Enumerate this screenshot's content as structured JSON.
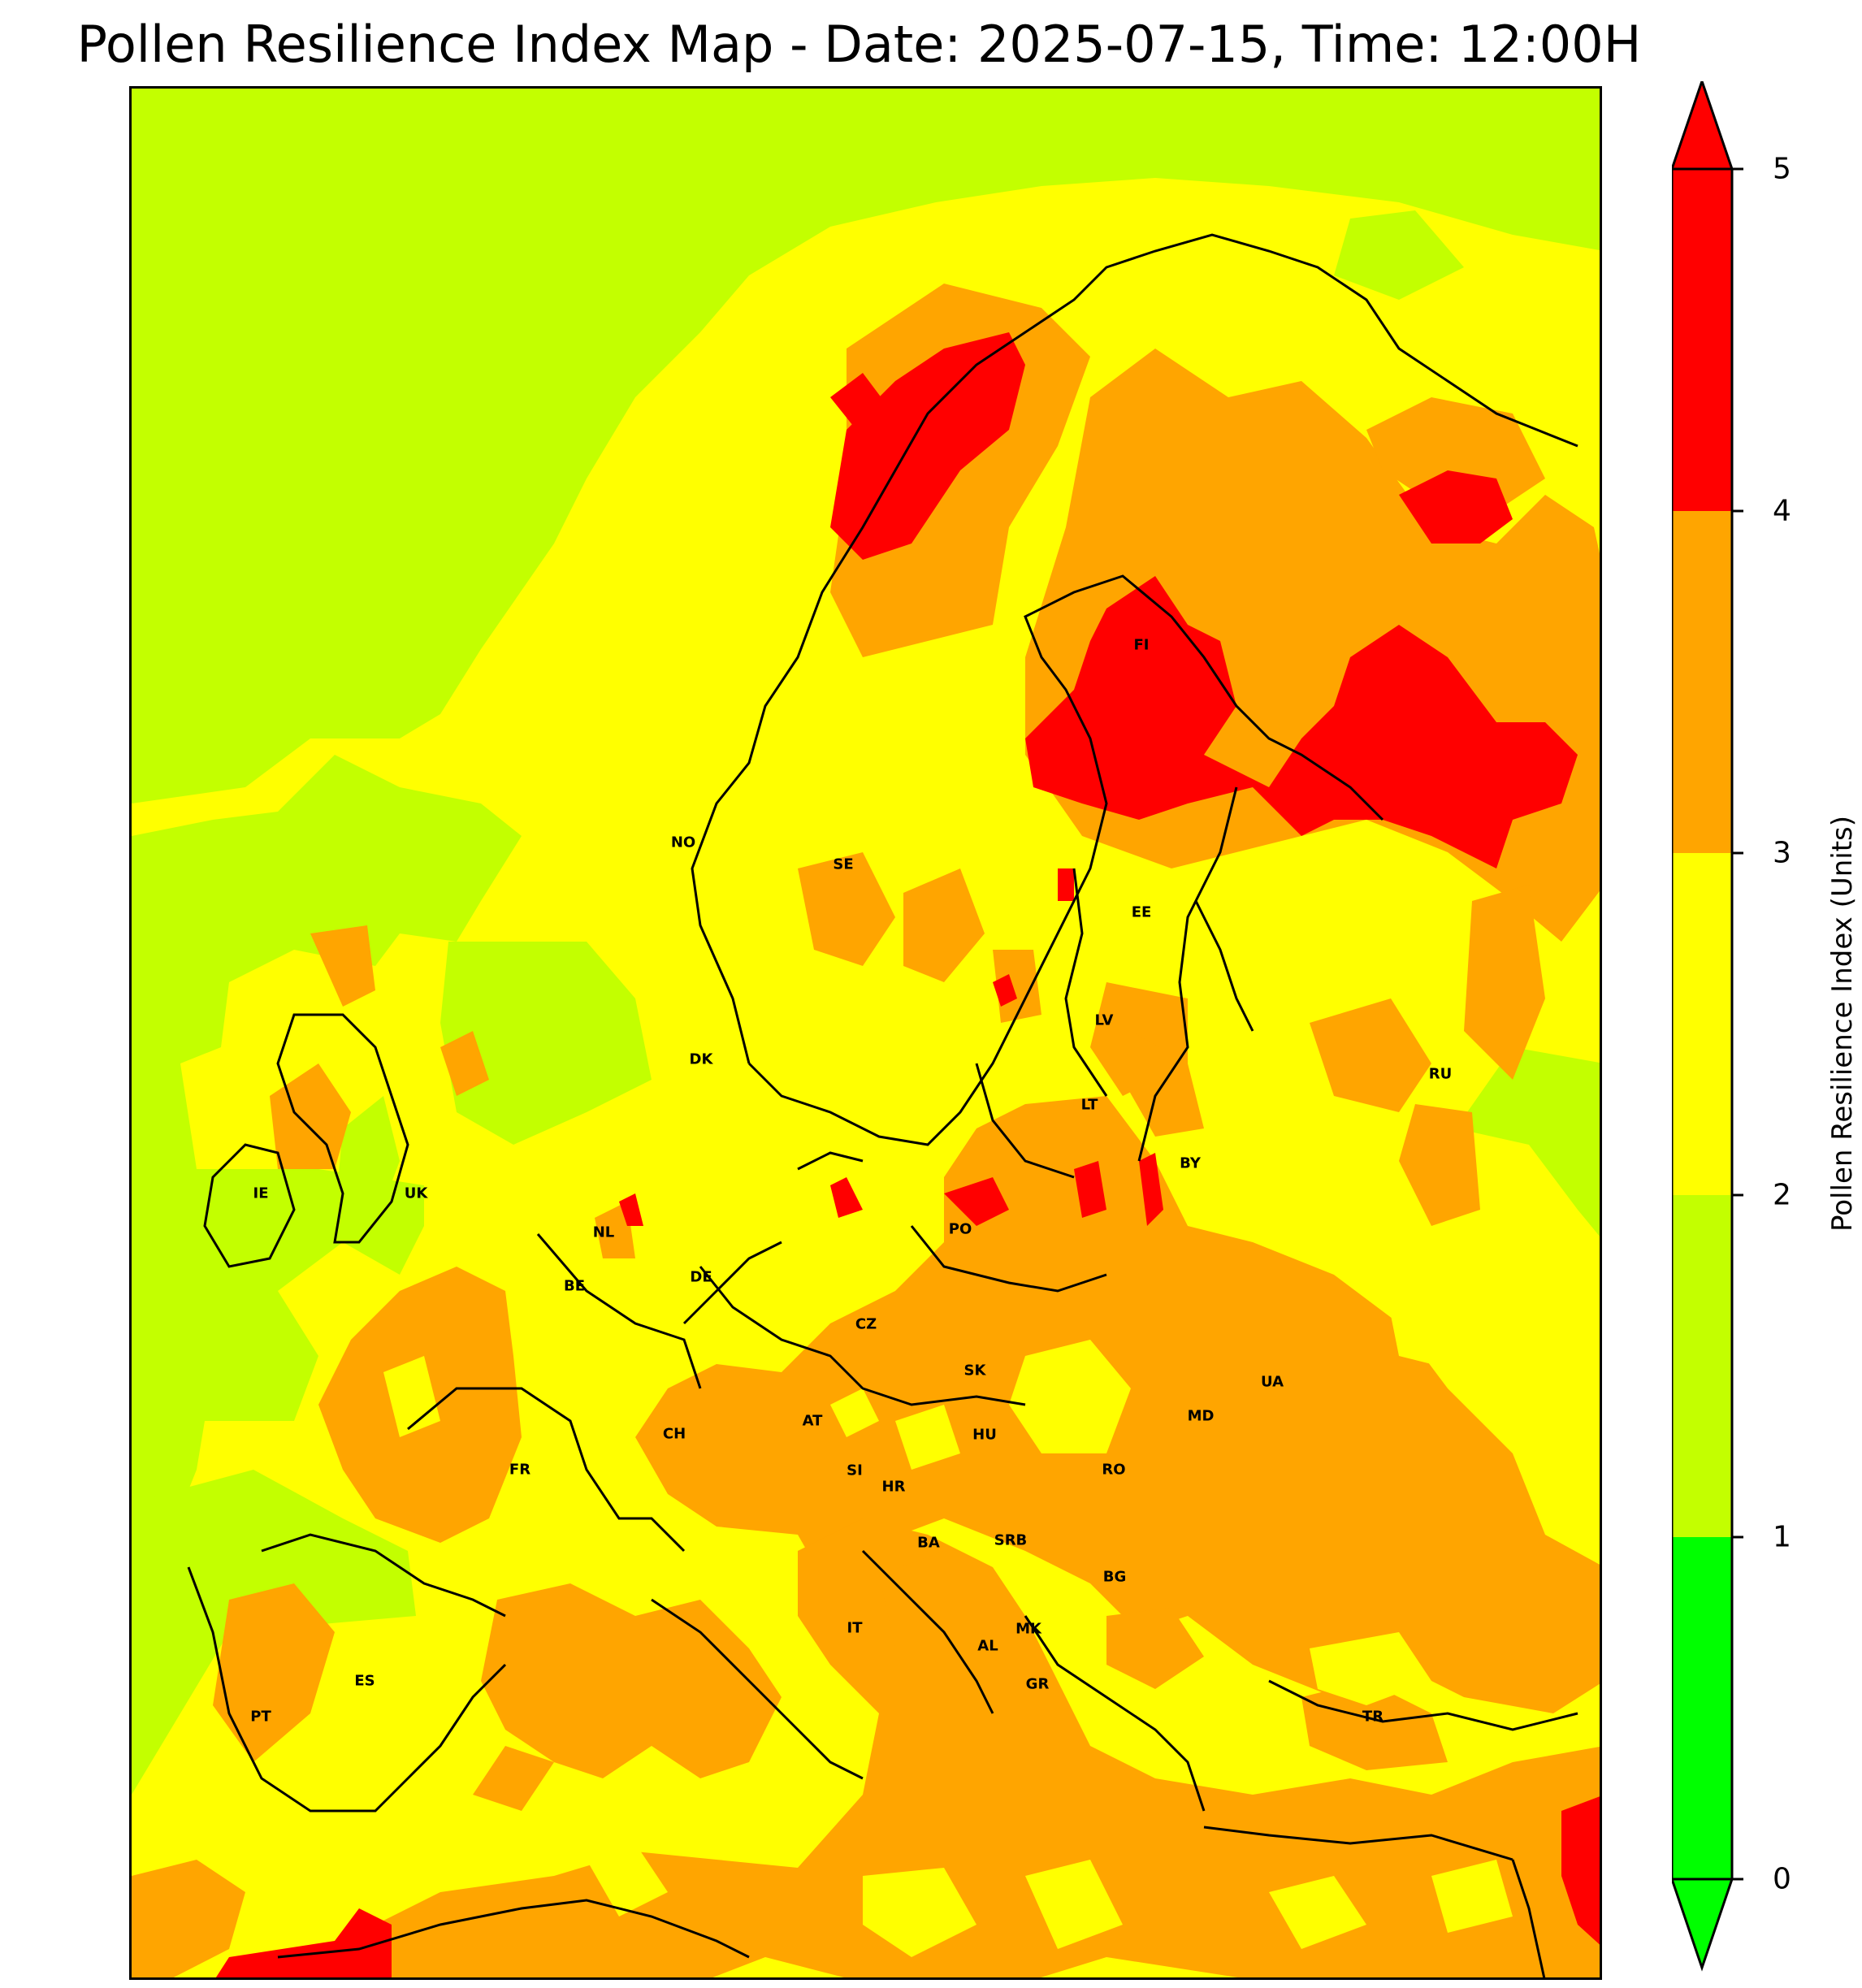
{
  "title": "Pollen Resilience Index Map - Date: 2025-07-15, Time: 12:00H",
  "colorbar": {
    "label": "Pollen Resilience Index (Units)",
    "ticks": [
      "0",
      "1",
      "2",
      "3",
      "4",
      "5"
    ],
    "levels": [
      {
        "range": [
          0,
          1
        ],
        "color": "#00ff00"
      },
      {
        "range": [
          1,
          2
        ],
        "color": "#c3ff00"
      },
      {
        "range": [
          2,
          3
        ],
        "color": "#ffff00"
      },
      {
        "range": [
          3,
          4
        ],
        "color": "#ffa500"
      },
      {
        "range": [
          4,
          5
        ],
        "color": "#ff0000"
      }
    ],
    "extend_below_color": "#00ff00",
    "extend_above_color": "#ff0000"
  },
  "countries": [
    "NO",
    "SE",
    "FI",
    "EE",
    "LV",
    "LT",
    "RU",
    "BY",
    "DK",
    "IE",
    "UK",
    "NL",
    "BE",
    "DE",
    "PO",
    "CZ",
    "SK",
    "UA",
    "MD",
    "AT",
    "CH",
    "HU",
    "RO",
    "FR",
    "SI",
    "HR",
    "BA",
    "SRB",
    "BG",
    "MK",
    "AL",
    "IT",
    "GR",
    "ES",
    "PT",
    "TR"
  ]
}
